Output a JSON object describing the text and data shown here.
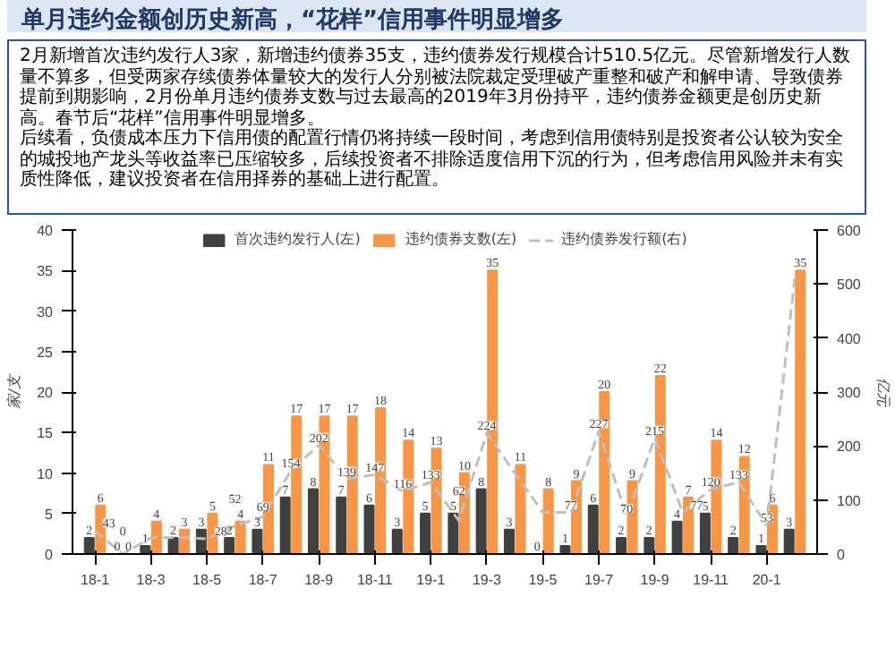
{
  "chart_data": {
    "type": "bar",
    "title": "单月违约金额创历史新高，“花样”信用事件明显增多",
    "annotations": [
      "2月新增首次违约发行人3家，新增违约债券35支，违约债券发行规模合计510.5亿元。尽管新增发行人数量不算多，但受两家存续债券体量较大的发行人分别被法院裁定受理破产重整和破产和解申请、导致债券提前到期影响，2月份单月违约债券支数与过去最高的2019年3月份持平，违约债券金额更是创历史新高。春节后“花样”信用事件明显增多。",
      "后续看，负债成本压力下信用债的配置行情仍将持续一段时间，考虑到信用债特别是投资者公认较为安全的城投地产龙头等收益率已压缩较多，后续投资者不排除适度信用下沉的行为，但考虑信用风险并未有实质性降低，建议投资者在信用择券的基础上进行配置。"
    ],
    "ylabel": "家/支",
    "y2label": "亿元",
    "categories": [
      "18-1",
      null,
      "18-3",
      null,
      "18-5",
      null,
      "18-7",
      null,
      "18-9",
      null,
      "18-11",
      null,
      "19-1",
      null,
      "19-3",
      null,
      "19-5",
      null,
      "19-7",
      null,
      "19-9",
      null,
      "19-11",
      null,
      "20-1",
      null
    ],
    "series": [
      {
        "name": "首次违约发行人(左)",
        "color": "#404040",
        "values": [
          2,
          0,
          1,
          2,
          3,
          2,
          3,
          7,
          8,
          7,
          6,
          3,
          5,
          5,
          8,
          3,
          0,
          1,
          6,
          2,
          2,
          4,
          5,
          2,
          1,
          3
        ],
        "data_labels": true
      },
      {
        "name": "违约债券支数(左)",
        "color": "#f79646",
        "values": [
          6,
          0,
          4,
          3,
          5,
          4,
          11,
          17,
          17,
          17,
          18,
          14,
          13,
          10,
          35,
          11,
          8,
          9,
          20,
          9,
          22,
          7,
          14,
          12,
          6,
          35
        ],
        "data_labels": true
      },
      {
        "name": "违约债券发行额(右)",
        "type": "line",
        "axis": "y2",
        "color": "#bfbfbf",
        "line_style": "dashed",
        "values": [
          43,
          0,
          30,
          31,
          28,
          52,
          69,
          154,
          202,
          139,
          147,
          116,
          133,
          62,
          224,
          150,
          77,
          77,
          227,
          70,
          215,
          77,
          120,
          133,
          53,
          510.5
        ],
        "value_labels": [
          "43",
          "0",
          null,
          null,
          "28",
          "52",
          "69",
          "154",
          "202",
          "139",
          "147",
          "116",
          "133",
          "62",
          "224",
          null,
          null,
          "77",
          "227",
          "70",
          "215",
          "77",
          "120",
          "133",
          "53",
          null
        ]
      }
    ],
    "ylim": [
      0,
      40
    ],
    "yticks": [
      0,
      5,
      10,
      15,
      20,
      25,
      30,
      35,
      40
    ],
    "y2lim": [
      0,
      600
    ],
    "y2ticks": [
      0,
      100,
      200,
      300,
      400,
      500,
      600
    ],
    "legend": "top",
    "grid": false
  }
}
